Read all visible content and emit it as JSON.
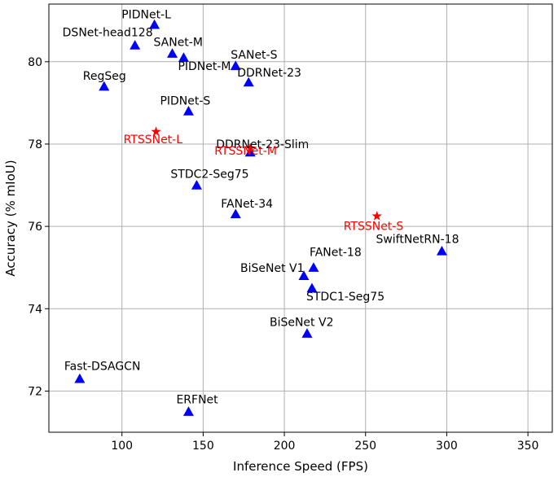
{
  "chart_data": {
    "type": "scatter",
    "title": "",
    "xlabel": "Inference Speed (FPS)",
    "ylabel": "Accuracy (% mIoU)",
    "xlim": [
      55,
      365
    ],
    "ylim": [
      71.0,
      81.4
    ],
    "xticks": [
      100,
      150,
      200,
      250,
      300,
      350
    ],
    "yticks": [
      72,
      74,
      76,
      78,
      80
    ],
    "grid": true,
    "colors": {
      "baseline": "#0000ff",
      "proposed": "#ff0000",
      "grid": "#b0b0b0",
      "text": "#000000"
    },
    "points": [
      {
        "label": "PIDNet-L",
        "x": 120,
        "y": 80.9,
        "group": "baseline"
      },
      {
        "label": "DSNet-head128",
        "x": 108,
        "y": 80.4,
        "group": "baseline"
      },
      {
        "label": "SANet-M",
        "x": 131,
        "y": 80.2,
        "group": "baseline"
      },
      {
        "label": "PIDNet-M",
        "x": 138,
        "y": 80.1,
        "group": "baseline"
      },
      {
        "label": "SANet-S",
        "x": 170,
        "y": 79.9,
        "group": "baseline"
      },
      {
        "label": "DDRNet-23",
        "x": 178,
        "y": 79.5,
        "group": "baseline"
      },
      {
        "label": "RegSeg",
        "x": 89,
        "y": 79.4,
        "group": "baseline"
      },
      {
        "label": "PIDNet-S",
        "x": 141,
        "y": 78.8,
        "group": "baseline"
      },
      {
        "label": "RTSSNet-L",
        "x": 121,
        "y": 78.3,
        "group": "proposed"
      },
      {
        "label": "DDRNet-23-Slim",
        "x": 179,
        "y": 77.8,
        "group": "baseline"
      },
      {
        "label": "RTSSNet-M",
        "x": 179,
        "y": 77.9,
        "group": "proposed"
      },
      {
        "label": "STDC2-Seg75",
        "x": 146,
        "y": 77.0,
        "group": "baseline"
      },
      {
        "label": "FANet-34",
        "x": 170,
        "y": 76.3,
        "group": "baseline"
      },
      {
        "label": "RTSSNet-S",
        "x": 257,
        "y": 76.25,
        "group": "proposed"
      },
      {
        "label": "SwiftNetRN-18",
        "x": 297,
        "y": 75.4,
        "group": "baseline"
      },
      {
        "label": "FANet-18",
        "x": 218,
        "y": 75.0,
        "group": "baseline"
      },
      {
        "label": "BiSeNet V1",
        "x": 212,
        "y": 74.8,
        "group": "baseline"
      },
      {
        "label": "STDC1-Seg75",
        "x": 217,
        "y": 74.5,
        "group": "baseline"
      },
      {
        "label": "BiSeNet V2",
        "x": 214,
        "y": 73.4,
        "group": "baseline"
      },
      {
        "label": "Fast-DSAGCN",
        "x": 74,
        "y": 72.3,
        "group": "baseline"
      },
      {
        "label": "ERFNet",
        "x": 141,
        "y": 71.5,
        "group": "baseline"
      }
    ]
  }
}
